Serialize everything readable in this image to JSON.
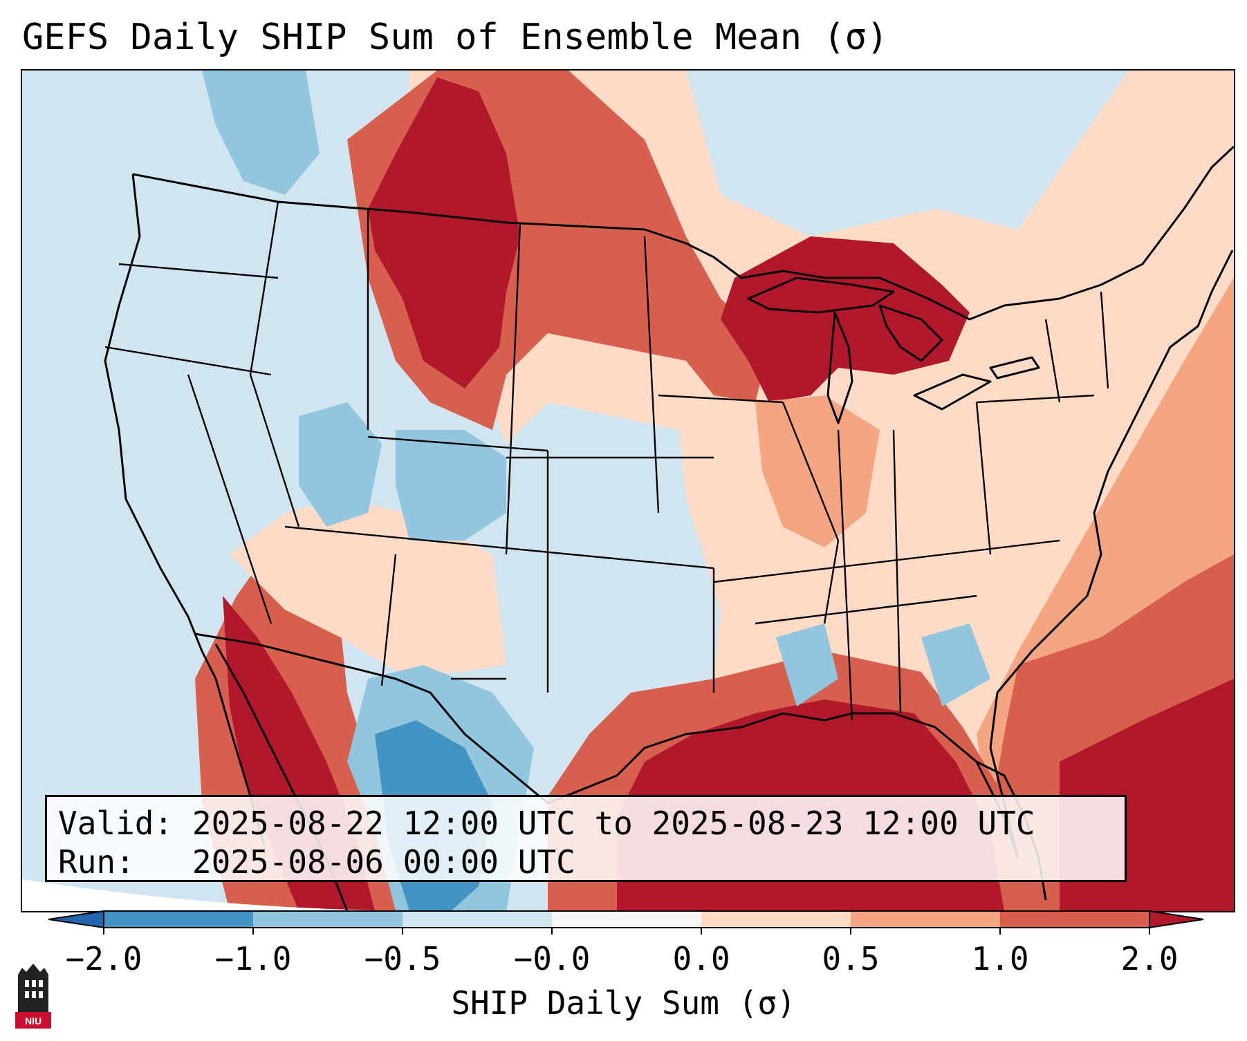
{
  "title": "GEFS Daily SHIP Sum of Ensemble Mean (σ)",
  "info": {
    "valid_label": "Valid:",
    "valid_value": "2025-08-22 12:00 UTC to 2025-08-23 12:00 UTC",
    "run_label": "Run:",
    "run_value": "2025-08-06 00:00 UTC"
  },
  "colorbar": {
    "label": "SHIP Daily Sum (σ)",
    "ticks": [
      "−2.0",
      "−1.0",
      "−0.5",
      "−0.0",
      "0.0",
      "0.5",
      "1.0",
      "2.0"
    ],
    "colors": [
      "#4393c3",
      "#92c5de",
      "#d1e5f0",
      "#f7f7f7",
      "#fddbc7",
      "#f4a582",
      "#d6604d",
      "#b2182b"
    ],
    "extend_low_color": "#2166ac",
    "extend_high_color": "#b2182b"
  },
  "logo_text": "NIU",
  "map": {
    "region": "Continental United States",
    "ocean_color": "#d1e5f0",
    "areas": [
      {
        "name": "northern-rockies-high",
        "level": 2
      },
      {
        "name": "great-lakes-high",
        "level": 2
      },
      {
        "name": "gulf-of-mexico-high",
        "level": 2
      },
      {
        "name": "mexico-west-high",
        "level": 2
      },
      {
        "name": "atlantic-southeast-high",
        "level": 1
      },
      {
        "name": "texas-mexico-low",
        "level": -1
      },
      {
        "name": "colorado-low",
        "level": -0.5
      }
    ]
  }
}
